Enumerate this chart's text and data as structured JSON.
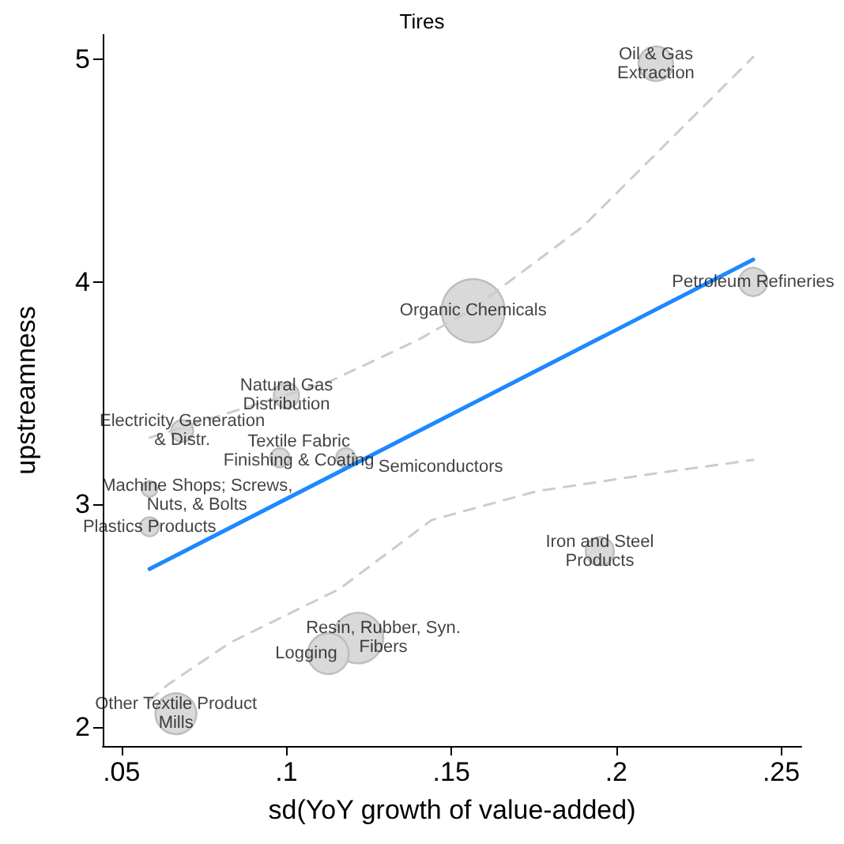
{
  "chart_data": {
    "type": "bubble",
    "title": "Tires",
    "xlabel": "sd(YoY growth of value-added)",
    "ylabel": "upstreamness",
    "xlim": [
      0.0443,
      0.2561
    ],
    "ylim": [
      1.915,
      5.11
    ],
    "xticks": [
      {
        "value": 0.05,
        "label": ".05"
      },
      {
        "value": 0.1,
        "label": ".1"
      },
      {
        "value": 0.15,
        "label": ".15"
      },
      {
        "value": 0.2,
        "label": ".2"
      },
      {
        "value": 0.25,
        "label": ".25"
      }
    ],
    "yticks": [
      2,
      3,
      4,
      5
    ],
    "series": [
      {
        "color": "#d9d9d9",
        "x": [
          0.212,
          0.2415,
          0.1566,
          0.1,
          0.0684,
          0.098,
          0.118,
          0.0585,
          0.0585,
          0.195,
          0.1217,
          0.1127,
          0.0665
        ],
        "values": [
          4.98,
          4.0,
          3.87,
          3.49,
          3.33,
          3.21,
          3.21,
          3.07,
          2.9,
          2.79,
          2.4,
          2.33,
          2.06
        ],
        "sizes": [
          0.3,
          0.2,
          1,
          0.16,
          0.12,
          0.09,
          0.09,
          0.06,
          0.09,
          0.2,
          0.64,
          0.42,
          0.42
        ]
      },
      {
        "type": "line",
        "color": "#1e88ff",
        "marker": "none",
        "x": [
          0.0585,
          0.2415
        ],
        "values": [
          2.71,
          4.1
        ]
      },
      {
        "type": "line",
        "color": "#cccccc",
        "marker": "none",
        "line_style": "dashed",
        "x": [
          0.0585,
          0.08,
          0.1127,
          0.14,
          0.1566,
          0.19,
          0.2415
        ],
        "values": [
          3.3,
          3.4,
          3.55,
          3.74,
          3.88,
          4.25,
          5.01
        ]
      },
      {
        "type": "line",
        "color": "#cccccc",
        "marker": "none",
        "line_style": "dashed",
        "x": [
          0.0585,
          0.064,
          0.083,
          0.116,
          0.144,
          0.176,
          0.212,
          0.2415
        ],
        "values": [
          2.12,
          2.19,
          2.38,
          2.62,
          2.93,
          3.06,
          3.14,
          3.2
        ]
      }
    ],
    "annotations": [
      {
        "text": "Oil & Gas\nExtraction",
        "x": 0.212,
        "y": 4.98
      },
      {
        "text": "Petroleum Refineries",
        "x": 0.2415,
        "y": 4.0
      },
      {
        "text": "Organic Chemicals",
        "x": 0.1566,
        "y": 3.87
      },
      {
        "text": "Natural Gas\nDistribution",
        "x": 0.1,
        "y": 3.49
      },
      {
        "text": "Electricity Generation\n& Distr.",
        "x": 0.0684,
        "y": 3.33
      },
      {
        "text": "Textile Fabric\nFinishing & Coating",
        "x": 0.098,
        "y": 3.21
      },
      {
        "text": "Semiconductors",
        "x": 0.118,
        "y": 3.21
      },
      {
        "text": "Machine Shops; Screws,\nNuts, & Bolts",
        "x": 0.0585,
        "y": 3.07
      },
      {
        "text": "Plastics Products",
        "x": 0.0585,
        "y": 2.9
      },
      {
        "text": "Iron and Steel\nProducts",
        "x": 0.195,
        "y": 2.79
      },
      {
        "text": "Resin, Rubber, Syn.\nFibers",
        "x": 0.1217,
        "y": 2.4
      },
      {
        "text": "Logging",
        "x": 0.1127,
        "y": 2.33
      },
      {
        "text": "Other Textile Product\nMills",
        "x": 0.0665,
        "y": 2.06
      }
    ]
  }
}
